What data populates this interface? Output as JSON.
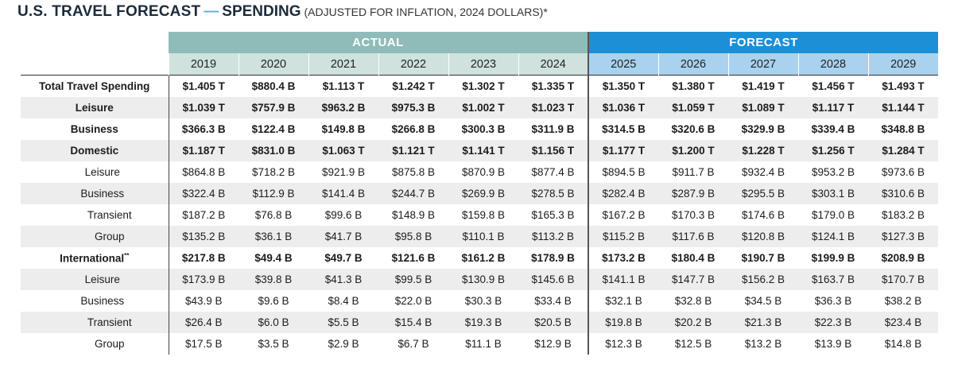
{
  "title": {
    "main": "U.S. TRAVEL FORECAST",
    "dash": "—",
    "sub": "SPENDING",
    "note": "(ADJUSTED FOR INFLATION, 2024 DOLLARS)*"
  },
  "bands": {
    "actual": "ACTUAL",
    "forecast": "FORECAST"
  },
  "years": [
    "2019",
    "2020",
    "2021",
    "2022",
    "2023",
    "2024",
    "2025",
    "2026",
    "2027",
    "2028",
    "2029"
  ],
  "rows": [
    {
      "label": "Total Travel Spending",
      "values": [
        "$1.405 T",
        "$880.4 B",
        "$1.113 T",
        "$1.242 T",
        "$1.302 T",
        "$1.335 T",
        "$1.350 T",
        "$1.380 T",
        "$1.419  T",
        "$1.456 T",
        "$1.493 T"
      ]
    },
    {
      "label": "Leisure",
      "values": [
        "$1.039 T",
        "$757.9 B",
        "$963.2 B",
        "$975.3 B",
        "$1.002 T",
        "$1.023 T",
        "$1.036 T",
        "$1.059 T",
        "$1.089 T",
        "$1.117 T",
        "$1.144 T"
      ]
    },
    {
      "label": "Business",
      "values": [
        "$366.3 B",
        "$122.4 B",
        "$149.8 B",
        "$266.8 B",
        "$300.3 B",
        "$311.9 B",
        "$314.5 B",
        "$320.6 B",
        "$329.9 B",
        "$339.4 B",
        "$348.8 B"
      ]
    },
    {
      "label": "Domestic",
      "values": [
        "$1.187 T",
        "$831.0 B",
        "$1.063 T",
        "$1.121 T",
        "$1.141 T",
        "$1.156 T",
        "$1.177 T",
        "$1.200 T",
        "$1.228 T",
        "$1.256 T",
        "$1.284 T"
      ]
    },
    {
      "label": "Leisure",
      "values": [
        "$864.8 B",
        "$718.2 B",
        "$921.9 B",
        "$875.8 B",
        "$870.9 B",
        "$877.4 B",
        "$894.5 B",
        "$911.7 B",
        "$932.4 B",
        "$953.2 B",
        "$973.6 B"
      ]
    },
    {
      "label": "Business",
      "values": [
        "$322.4 B",
        "$112.9 B",
        "$141.4 B",
        "$244.7 B",
        "$269.9 B",
        "$278.5 B",
        "$282.4 B",
        "$287.9 B",
        "$295.5 B",
        "$303.1 B",
        "$310.6 B"
      ]
    },
    {
      "label": "Transient",
      "values": [
        "$187.2 B",
        "$76.8 B",
        "$99.6 B",
        "$148.9 B",
        "$159.8 B",
        "$165.3 B",
        "$167.2 B",
        "$170.3 B",
        "$174.6 B",
        "$179.0 B",
        "$183.2 B"
      ]
    },
    {
      "label": "Group",
      "values": [
        "$135.2 B",
        "$36.1 B",
        "$41.7 B",
        "$95.8 B",
        "$110.1 B",
        "$113.2 B",
        "$115.2 B",
        "$117.6 B",
        "$120.8 B",
        "$124.1 B",
        "$127.3 B"
      ]
    },
    {
      "label": "International",
      "sup": "**",
      "values": [
        "$217.8 B",
        "$49.4 B",
        "$49.7 B",
        "$121.6 B",
        "$161.2 B",
        "$178.9 B",
        "$173.2 B",
        "$180.4 B",
        "$190.7 B",
        "$199.9 B",
        "$208.9 B"
      ]
    },
    {
      "label": "Leisure",
      "values": [
        "$173.9 B",
        "$39.8 B",
        "$41.3 B",
        "$99.5 B",
        "$130.9 B",
        "$145.6 B",
        "$141.1 B",
        "$147.7 B",
        "$156.2 B",
        "$163.7 B",
        "$170.7 B"
      ]
    },
    {
      "label": "Business",
      "values": [
        "$43.9 B",
        "$9.6 B",
        "$8.4 B",
        "$22.0 B",
        "$30.3 B",
        "$33.4 B",
        "$32.1 B",
        "$32.8 B",
        "$34.5 B",
        "$36.3 B",
        "$38.2 B"
      ]
    },
    {
      "label": "Transient",
      "values": [
        "$26.4 B",
        "$6.0 B",
        "$5.5 B",
        "$15.4 B",
        "$19.3 B",
        "$20.5 B",
        "$19.8 B",
        "$20.2 B",
        "$21.3 B",
        "$22.3 B",
        "$23.4 B"
      ]
    },
    {
      "label": "Group",
      "values": [
        "$17.5 B",
        "$3.5 B",
        "$2.9 B",
        "$6.7 B",
        "$11.1 B",
        "$12.9 B",
        "$12.3 B",
        "$12.5 B",
        "$13.2 B",
        "$13.9 B",
        "$14.8 B"
      ]
    }
  ]
}
